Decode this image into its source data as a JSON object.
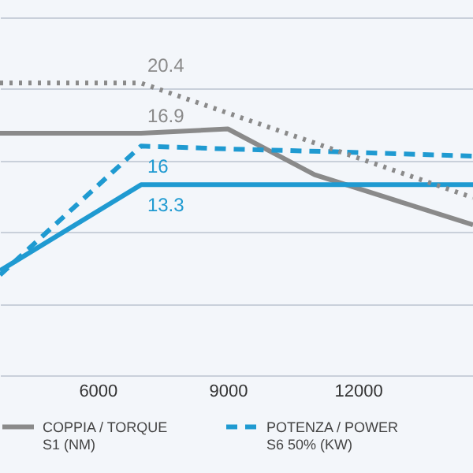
{
  "chart_data": {
    "type": "line",
    "xlim": [
      3750,
      14650
    ],
    "xticks": [
      {
        "value": 6000,
        "label": "6000"
      },
      {
        "value": 9000,
        "label": "9000"
      },
      {
        "value": 12000,
        "label": "12000"
      }
    ],
    "ylim": [
      0,
      26.2
    ],
    "yticks": [
      {
        "value": 0,
        "label": null
      },
      {
        "value": 5,
        "label": null
      },
      {
        "value": 10,
        "label": null
      },
      {
        "value": 15,
        "label": null
      },
      {
        "value": 20,
        "label": null
      },
      {
        "value": 25,
        "label": null
      }
    ],
    "grid": "y",
    "tick_labels": "x",
    "legend": "bottom",
    "series": [
      {
        "name": "COPPIA / TORQUE\nS1 (NM)",
        "color": "#8a8a8a",
        "line_style": "solid",
        "x": [
          3750,
          7000,
          9000,
          11000,
          14650
        ],
        "values": [
          16.9,
          16.9,
          17.2,
          14.0,
          10.5
        ],
        "value_labels": [
          null,
          "16.9",
          null,
          null,
          null
        ]
      },
      {
        "name": "POTENZA / POWER\nS6 50% (KW)",
        "color": "#1f9ad1",
        "line_style": "dashed",
        "x": [
          3750,
          7000,
          9000,
          11500,
          14650
        ],
        "values": [
          7.0,
          16.0,
          15.8,
          15.6,
          15.3
        ],
        "value_labels": [
          null,
          "16",
          null,
          null,
          null
        ]
      },
      {
        "color": "#1f9ad1",
        "line_style": "solid",
        "x": [
          3750,
          7000,
          14650
        ],
        "values": [
          7.3,
          13.3,
          13.3
        ],
        "value_labels": [
          null,
          "13.3",
          null
        ]
      },
      {
        "color": "#8a8a8a",
        "line_style": "dotted",
        "x": [
          3750,
          7000,
          14650
        ],
        "values": [
          20.4,
          20.4,
          12.4
        ],
        "value_labels": [
          null,
          "20.4",
          null
        ]
      }
    ]
  }
}
